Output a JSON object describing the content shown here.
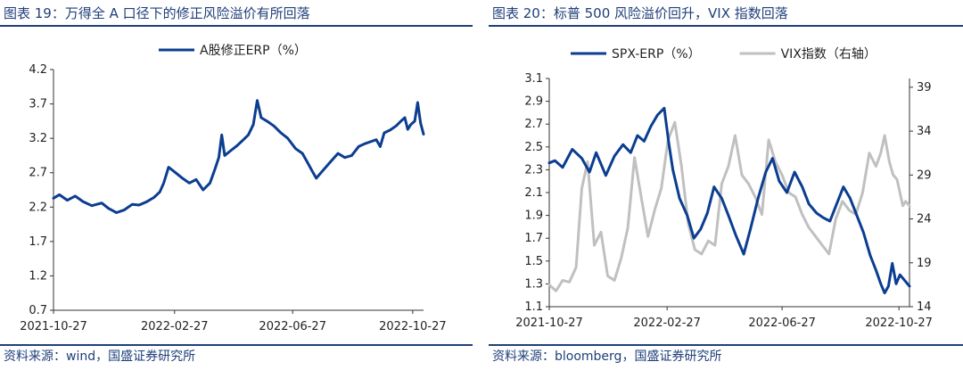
{
  "left": {
    "title": "图表 19：万得全 A 口径下的修正风险溢价有所回落",
    "source": "资料来源：wind，国盛证券研究所"
  },
  "right": {
    "title": "图表 20：标普 500 风险溢价回升，VIX 指数回落",
    "source": "资料来源：bloomberg，国盛证券研究所"
  },
  "colors": {
    "primary": "#0b3d91",
    "secondary": "#c0c0c0",
    "text": "#1f3f7a"
  },
  "chart_data": [
    {
      "type": "line",
      "title": "",
      "xlabel": "",
      "ylabel": "",
      "ylim": [
        0.7,
        4.2
      ],
      "yticks": [
        0.7,
        1.2,
        1.7,
        2.2,
        2.7,
        3.2,
        3.7,
        4.2
      ],
      "x_range": [
        "2021-10-27",
        "2022-11-07"
      ],
      "xticks": [
        "2021-10-27",
        "2022-02-27",
        "2022-06-27",
        "2022-10-27"
      ],
      "legend": "top",
      "series": [
        {
          "name": "A股修正ERP（%）",
          "color": "#0b3d91",
          "points": [
            [
              "2021-10-27",
              2.33
            ],
            [
              "2021-11-02",
              2.38
            ],
            [
              "2021-11-10",
              2.3
            ],
            [
              "2021-11-18",
              2.36
            ],
            [
              "2021-11-26",
              2.28
            ],
            [
              "2021-12-05",
              2.22
            ],
            [
              "2021-12-15",
              2.26
            ],
            [
              "2021-12-22",
              2.18
            ],
            [
              "2021-12-30",
              2.12
            ],
            [
              "2022-01-07",
              2.16
            ],
            [
              "2022-01-15",
              2.24
            ],
            [
              "2022-01-22",
              2.23
            ],
            [
              "2022-01-30",
              2.28
            ],
            [
              "2022-02-06",
              2.34
            ],
            [
              "2022-02-12",
              2.42
            ],
            [
              "2022-02-16",
              2.55
            ],
            [
              "2022-02-21",
              2.78
            ],
            [
              "2022-02-28",
              2.7
            ],
            [
              "2022-03-07",
              2.62
            ],
            [
              "2022-03-14",
              2.55
            ],
            [
              "2022-03-21",
              2.6
            ],
            [
              "2022-03-28",
              2.45
            ],
            [
              "2022-04-04",
              2.55
            ],
            [
              "2022-04-09",
              2.75
            ],
            [
              "2022-04-13",
              2.92
            ],
            [
              "2022-04-16",
              3.25
            ],
            [
              "2022-04-19",
              2.95
            ],
            [
              "2022-04-25",
              3.02
            ],
            [
              "2022-05-02",
              3.1
            ],
            [
              "2022-05-08",
              3.18
            ],
            [
              "2022-05-13",
              3.25
            ],
            [
              "2022-05-18",
              3.4
            ],
            [
              "2022-05-22",
              3.75
            ],
            [
              "2022-05-26",
              3.5
            ],
            [
              "2022-06-01",
              3.45
            ],
            [
              "2022-06-08",
              3.38
            ],
            [
              "2022-06-15",
              3.28
            ],
            [
              "2022-06-22",
              3.2
            ],
            [
              "2022-06-30",
              3.05
            ],
            [
              "2022-07-07",
              2.98
            ],
            [
              "2022-07-12",
              2.85
            ],
            [
              "2022-07-17",
              2.72
            ],
            [
              "2022-07-21",
              2.62
            ],
            [
              "2022-07-27",
              2.72
            ],
            [
              "2022-08-04",
              2.85
            ],
            [
              "2022-08-12",
              2.98
            ],
            [
              "2022-08-19",
              2.92
            ],
            [
              "2022-08-26",
              2.95
            ],
            [
              "2022-09-02",
              3.08
            ],
            [
              "2022-09-08",
              3.12
            ],
            [
              "2022-09-14",
              3.15
            ],
            [
              "2022-09-20",
              3.18
            ],
            [
              "2022-09-24",
              3.08
            ],
            [
              "2022-09-28",
              3.28
            ],
            [
              "2022-10-04",
              3.32
            ],
            [
              "2022-10-10",
              3.38
            ],
            [
              "2022-10-15",
              3.45
            ],
            [
              "2022-10-19",
              3.5
            ],
            [
              "2022-10-22",
              3.33
            ],
            [
              "2022-10-25",
              3.4
            ],
            [
              "2022-10-29",
              3.45
            ],
            [
              "2022-11-01",
              3.72
            ],
            [
              "2022-11-04",
              3.42
            ],
            [
              "2022-11-07",
              3.26
            ]
          ]
        }
      ]
    },
    {
      "type": "line",
      "title": "",
      "xlabel": "",
      "ylabel": "",
      "ylim": [
        1.1,
        3.1
      ],
      "yticks": [
        1.1,
        1.3,
        1.5,
        1.7,
        1.9,
        2.1,
        2.3,
        2.5,
        2.7,
        2.9,
        3.1
      ],
      "y2lim": [
        14,
        40
      ],
      "y2ticks": [
        14,
        19,
        24,
        29,
        34,
        39
      ],
      "x_range": [
        "2021-10-27",
        "2022-11-07"
      ],
      "xticks": [
        "2021-10-27",
        "2022-02-27",
        "2022-06-27",
        "2022-10-27"
      ],
      "legend": "top",
      "series": [
        {
          "name": "SPX-ERP（%）",
          "color": "#0b3d91",
          "axis": "left",
          "points": [
            [
              "2021-10-27",
              2.36
            ],
            [
              "2021-11-02",
              2.38
            ],
            [
              "2021-11-10",
              2.32
            ],
            [
              "2021-11-20",
              2.48
            ],
            [
              "2021-11-30",
              2.4
            ],
            [
              "2021-12-08",
              2.28
            ],
            [
              "2021-12-15",
              2.45
            ],
            [
              "2021-12-25",
              2.25
            ],
            [
              "2022-01-03",
              2.42
            ],
            [
              "2022-01-12",
              2.52
            ],
            [
              "2022-01-20",
              2.45
            ],
            [
              "2022-01-27",
              2.6
            ],
            [
              "2022-02-03",
              2.55
            ],
            [
              "2022-02-10",
              2.68
            ],
            [
              "2022-02-17",
              2.78
            ],
            [
              "2022-02-24",
              2.84
            ],
            [
              "2022-03-01",
              2.52
            ],
            [
              "2022-03-05",
              2.3
            ],
            [
              "2022-03-12",
              2.05
            ],
            [
              "2022-03-20",
              1.9
            ],
            [
              "2022-03-27",
              1.7
            ],
            [
              "2022-04-03",
              1.78
            ],
            [
              "2022-04-10",
              1.92
            ],
            [
              "2022-04-17",
              2.15
            ],
            [
              "2022-04-25",
              2.05
            ],
            [
              "2022-05-02",
              1.9
            ],
            [
              "2022-05-10",
              1.72
            ],
            [
              "2022-05-18",
              1.56
            ],
            [
              "2022-05-25",
              1.78
            ],
            [
              "2022-06-02",
              2.05
            ],
            [
              "2022-06-10",
              2.28
            ],
            [
              "2022-06-17",
              2.4
            ],
            [
              "2022-06-24",
              2.2
            ],
            [
              "2022-07-02",
              2.1
            ],
            [
              "2022-07-10",
              2.28
            ],
            [
              "2022-07-18",
              2.15
            ],
            [
              "2022-07-25",
              2.0
            ],
            [
              "2022-08-02",
              1.92
            ],
            [
              "2022-08-09",
              1.88
            ],
            [
              "2022-08-16",
              1.85
            ],
            [
              "2022-08-23",
              2.0
            ],
            [
              "2022-08-30",
              2.15
            ],
            [
              "2022-09-06",
              2.05
            ],
            [
              "2022-09-13",
              1.9
            ],
            [
              "2022-09-20",
              1.75
            ],
            [
              "2022-09-27",
              1.55
            ],
            [
              "2022-10-03",
              1.42
            ],
            [
              "2022-10-08",
              1.3
            ],
            [
              "2022-10-12",
              1.22
            ],
            [
              "2022-10-16",
              1.28
            ],
            [
              "2022-10-20",
              1.48
            ],
            [
              "2022-10-24",
              1.3
            ],
            [
              "2022-10-28",
              1.38
            ],
            [
              "2022-11-02",
              1.33
            ],
            [
              "2022-11-07",
              1.28
            ]
          ]
        },
        {
          "name": "VIX指数（右轴）",
          "color": "#c0c0c0",
          "axis": "right",
          "points": [
            [
              "2021-10-27",
              16.5
            ],
            [
              "2021-11-03",
              15.8
            ],
            [
              "2021-11-10",
              17.0
            ],
            [
              "2021-11-17",
              16.8
            ],
            [
              "2021-11-24",
              18.5
            ],
            [
              "2021-11-30",
              27.5
            ],
            [
              "2021-12-06",
              30.5
            ],
            [
              "2021-12-13",
              21.0
            ],
            [
              "2021-12-20",
              22.5
            ],
            [
              "2021-12-27",
              17.5
            ],
            [
              "2022-01-03",
              17.0
            ],
            [
              "2022-01-10",
              19.5
            ],
            [
              "2022-01-17",
              23.0
            ],
            [
              "2022-01-24",
              31.0
            ],
            [
              "2022-01-31",
              26.5
            ],
            [
              "2022-02-07",
              22.0
            ],
            [
              "2022-02-14",
              25.0
            ],
            [
              "2022-02-21",
              27.5
            ],
            [
              "2022-02-28",
              33.0
            ],
            [
              "2022-03-07",
              35.0
            ],
            [
              "2022-03-14",
              30.0
            ],
            [
              "2022-03-21",
              23.5
            ],
            [
              "2022-03-28",
              20.5
            ],
            [
              "2022-04-04",
              20.0
            ],
            [
              "2022-04-11",
              21.5
            ],
            [
              "2022-04-18",
              21.0
            ],
            [
              "2022-04-25",
              28.0
            ],
            [
              "2022-05-02",
              30.0
            ],
            [
              "2022-05-09",
              33.5
            ],
            [
              "2022-05-16",
              29.0
            ],
            [
              "2022-05-23",
              28.0
            ],
            [
              "2022-05-30",
              26.5
            ],
            [
              "2022-06-06",
              24.5
            ],
            [
              "2022-06-13",
              33.0
            ],
            [
              "2022-06-20",
              30.5
            ],
            [
              "2022-06-27",
              29.0
            ],
            [
              "2022-07-04",
              27.0
            ],
            [
              "2022-07-11",
              26.5
            ],
            [
              "2022-07-18",
              24.5
            ],
            [
              "2022-07-25",
              23.0
            ],
            [
              "2022-08-01",
              22.0
            ],
            [
              "2022-08-08",
              21.0
            ],
            [
              "2022-08-15",
              20.0
            ],
            [
              "2022-08-22",
              24.0
            ],
            [
              "2022-08-29",
              26.0
            ],
            [
              "2022-09-05",
              25.0
            ],
            [
              "2022-09-12",
              24.5
            ],
            [
              "2022-09-19",
              27.0
            ],
            [
              "2022-09-26",
              31.5
            ],
            [
              "2022-10-03",
              30.0
            ],
            [
              "2022-10-08",
              31.5
            ],
            [
              "2022-10-12",
              33.5
            ],
            [
              "2022-10-17",
              30.5
            ],
            [
              "2022-10-21",
              29.0
            ],
            [
              "2022-10-25",
              28.5
            ],
            [
              "2022-10-31",
              25.5
            ],
            [
              "2022-11-03",
              26.0
            ],
            [
              "2022-11-07",
              25.5
            ]
          ]
        }
      ]
    }
  ]
}
